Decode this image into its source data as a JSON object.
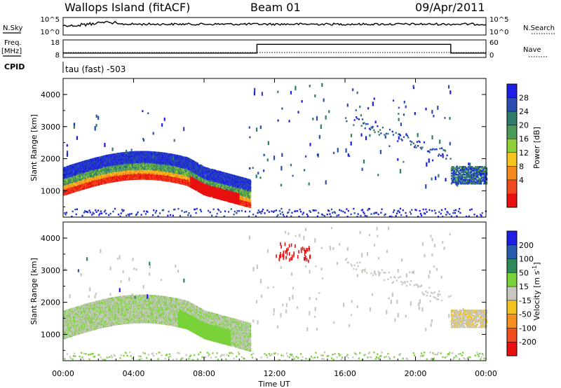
{
  "header": {
    "station": "Wallops Island (fitACF)",
    "beam": "Beam 01",
    "date": "09/Apr/2011"
  },
  "top_panels": {
    "nsky_label": "N.Sky",
    "nsky_ticks": [
      "10^5",
      "10^0"
    ],
    "nsearch_label": "N.Search",
    "nsearch_ticks": [
      "10^5",
      "10^0"
    ],
    "freq_label": "Freq.",
    "freq_unit": "[MHz]",
    "freq_ticks": [
      "18",
      "8"
    ],
    "nave_label": "Nave",
    "nave_ticks": [
      "60",
      "0"
    ],
    "cpid_label": "CPID",
    "cpid_value": "tau (fast) -503",
    "freq_series": [
      {
        "t": 0,
        "f": 10.5
      },
      {
        "t": 11,
        "f": 10.5
      },
      {
        "t": 11,
        "f": 15.5
      },
      {
        "t": 22,
        "f": 15.5
      },
      {
        "t": 22,
        "f": 10.5
      },
      {
        "t": 24,
        "f": 10.5
      }
    ]
  },
  "chart_data": [
    {
      "type": "heatmap",
      "name": "power",
      "ylabel": "Slant Range [km]",
      "yticks": [
        "1000",
        "2000",
        "3000",
        "4000"
      ],
      "ylim": [
        180,
        4500
      ],
      "xlim": [
        0,
        24
      ],
      "colorbar_label": "Power [dB]",
      "colorbar_ticks": [
        "28",
        "24",
        "20",
        "16",
        "12",
        "8",
        "4"
      ],
      "colorbar_colors": [
        "#1e1ee6",
        "#2a4fb0",
        "#2f7a6a",
        "#4a9a5a",
        "#8fcf3a",
        "#f7c51e",
        "#f58a1e",
        "#f04a1e",
        "#e81010"
      ],
      "regions": [
        {
          "t0": 0,
          "t1": 10.5,
          "r_center": 1550,
          "r_width": 900
        },
        {
          "t0": 11.5,
          "t1": 22,
          "r_center": 2800,
          "r_width": 2200
        },
        {
          "t0": 22,
          "t1": 24,
          "r_center": 1500,
          "r_width": 500
        }
      ]
    },
    {
      "type": "heatmap",
      "name": "velocity",
      "ylabel": "Slant Range [km]",
      "yticks": [
        "1000",
        "2000",
        "3000",
        "4000"
      ],
      "ylim": [
        180,
        4500
      ],
      "xlim": [
        0,
        24
      ],
      "xlabel": "Time UT",
      "xticks": [
        "00:00",
        "04:00",
        "08:00",
        "12:00",
        "16:00",
        "20:00",
        "00:00"
      ],
      "colorbar_label": "Velocity [m s",
      "colorbar_label_sup": "-1",
      "colorbar_label_end": "]",
      "colorbar_ticks": [
        "200",
        "100",
        "50",
        "15",
        "-15",
        "-50",
        "-100",
        "-200"
      ],
      "colorbar_colors": [
        "#1e1ee6",
        "#2a5ab0",
        "#2f8a5a",
        "#7ad23a",
        "#c8c8c0",
        "#f2c21e",
        "#f5901e",
        "#f0501e",
        "#e81010"
      ]
    }
  ]
}
